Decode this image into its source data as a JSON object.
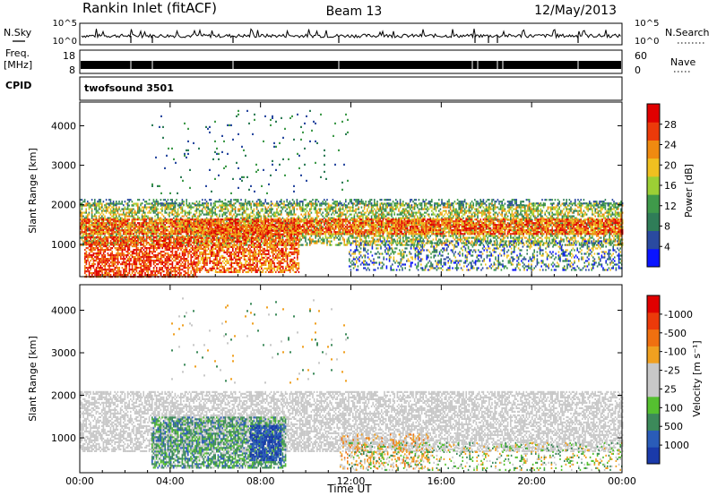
{
  "header": {
    "site": "Rankin Inlet (fitACF)",
    "beam": "Beam 13",
    "date": "12/May/2013"
  },
  "aux": {
    "nsky_label": "N.Sky",
    "nsky_ticks": [
      "10^5",
      "10^0"
    ],
    "nsearch_label": "N.Search",
    "nsearch_ticks": [
      "10^5",
      "10^0"
    ],
    "freq_label": "Freq.",
    "freq_unit": "[MHz]",
    "freq_ticks": [
      "18",
      "8"
    ],
    "nave_label": "Nave",
    "nave_ticks": [
      "60",
      "0"
    ],
    "cpid_label": "CPID",
    "cpid_value": "twofsound 3501"
  },
  "chart_data": [
    {
      "type": "heatmap",
      "title": "",
      "ylabel": "Slant Range [km]",
      "ylim": [
        180,
        4600
      ],
      "y_ticks": [
        1000,
        2000,
        3000,
        4000
      ],
      "colorbar": {
        "label": "Power [dB]",
        "ticks": [
          "4",
          "8",
          "12",
          "16",
          "20",
          "24",
          "28"
        ],
        "colors": [
          "#0a14ff",
          "#2a4aa0",
          "#2f7d58",
          "#3f9a4a",
          "#9ccf35",
          "#f0c020",
          "#f08a10",
          "#ec3a0a",
          "#e00000"
        ]
      }
    },
    {
      "type": "heatmap",
      "title": "",
      "ylabel": "Slant Range [km]",
      "ylim": [
        180,
        4600
      ],
      "y_ticks": [
        1000,
        2000,
        3000,
        4000
      ],
      "colorbar": {
        "label": "Velocity [m s⁻¹]",
        "ticks": [
          "1000",
          "500",
          "100",
          "25",
          "-25",
          "-100",
          "-500",
          "-1000"
        ],
        "colors": [
          "#1a3aaa",
          "#2a5cb8",
          "#3c8a5a",
          "#55c030",
          "#c8c8c8",
          "#c8c8c8",
          "#f0a020",
          "#f07010",
          "#ec3a0a",
          "#e00000"
        ]
      }
    }
  ],
  "x_axis": {
    "label": "Time UT",
    "ticks": [
      "00:00",
      "04:00",
      "08:00",
      "12:00",
      "16:00",
      "20:00",
      "00:00"
    ],
    "range_hours": [
      0,
      24
    ]
  }
}
